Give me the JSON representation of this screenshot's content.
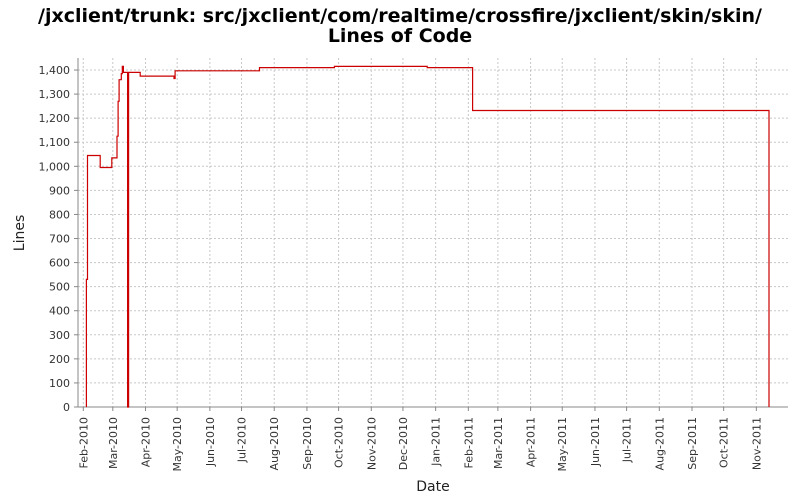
{
  "title_line1": "/jxclient/trunk: src/jxclient/com/realtime/crossfire/jxclient/skin/skin/",
  "title_line2": "Lines of Code",
  "chart_data": {
    "type": "line",
    "title": "/jxclient/trunk: src/jxclient/com/realtime/crossfire/jxclient/skin/skin/ Lines of Code",
    "xlabel": "Date",
    "ylabel": "Lines",
    "ylim": [
      0,
      1450
    ],
    "xlim": [
      "2010-01-27",
      "2011-12-01"
    ],
    "grid": true,
    "y_ticks": [
      0,
      100,
      200,
      300,
      400,
      500,
      600,
      700,
      800,
      900,
      1000,
      1100,
      1200,
      1300,
      1400
    ],
    "y_tick_labels": [
      "0",
      "100",
      "200",
      "300",
      "400",
      "500",
      "600",
      "700",
      "800",
      "900",
      "1,000",
      "1,100",
      "1,200",
      "1,300",
      "1,400"
    ],
    "x_ticks": [
      "2010-02-01",
      "2010-03-01",
      "2010-04-01",
      "2010-05-01",
      "2010-06-01",
      "2010-07-01",
      "2010-08-01",
      "2010-09-01",
      "2010-10-01",
      "2010-11-01",
      "2010-12-01",
      "2011-01-01",
      "2011-02-01",
      "2011-03-01",
      "2011-04-01",
      "2011-05-01",
      "2011-06-01",
      "2011-07-01",
      "2011-08-01",
      "2011-09-01",
      "2011-10-01",
      "2011-11-01"
    ],
    "x_tick_labels": [
      "Feb-2010",
      "Mar-2010",
      "Apr-2010",
      "May-2010",
      "Jun-2010",
      "Jul-2010",
      "Aug-2010",
      "Sep-2010",
      "Oct-2010",
      "Nov-2010",
      "Dec-2010",
      "Jan-2011",
      "Feb-2011",
      "Mar-2011",
      "Apr-2011",
      "May-2011",
      "Jun-2011",
      "Jul-2011",
      "Aug-2011",
      "Sep-2011",
      "Oct-2011",
      "Nov-2011"
    ],
    "series": [
      {
        "color": "#cc0000",
        "step": true,
        "points": [
          [
            "2010-02-04",
            0
          ],
          [
            "2010-02-04",
            510
          ],
          [
            "2010-02-04",
            530
          ],
          [
            "2010-02-05",
            1045
          ],
          [
            "2010-02-17",
            995
          ],
          [
            "2010-02-28",
            1035
          ],
          [
            "2010-03-05",
            1125
          ],
          [
            "2010-03-06",
            1270
          ],
          [
            "2010-03-07",
            1360
          ],
          [
            "2010-03-09",
            1385
          ],
          [
            "2010-03-10",
            1415
          ],
          [
            "2010-03-11",
            1390
          ],
          [
            "2010-03-15",
            0
          ],
          [
            "2010-03-16",
            1390
          ],
          [
            "2010-03-27",
            1375
          ],
          [
            "2010-04-28",
            1365
          ],
          [
            "2010-04-29",
            1397
          ],
          [
            "2010-07-18",
            1410
          ],
          [
            "2010-09-27",
            1415
          ],
          [
            "2010-12-24",
            1410
          ],
          [
            "2011-02-05",
            1232
          ],
          [
            "2011-11-13",
            0
          ]
        ]
      }
    ]
  }
}
